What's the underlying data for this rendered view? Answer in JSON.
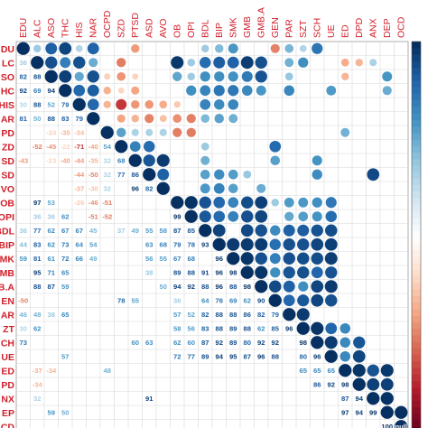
{
  "chart_data": {
    "type": "heatmap",
    "title": "",
    "variables": [
      "EDU",
      "ALC",
      "ASO",
      "THC",
      "HIS",
      "NAR",
      "OCPD",
      "SZD",
      "PTSD",
      "ASD",
      "AVO",
      "OB",
      "OPI",
      "BDL",
      "BIP",
      "SMK",
      "GMB",
      "GMB.A",
      "GEN",
      "PAR",
      "SZT",
      "SCH",
      "UE",
      "ED",
      "DPD",
      "ANX",
      "DEP",
      "OCD"
    ],
    "row_labels_visible": [
      "DU",
      "LC",
      "SO",
      "HC",
      "HIS",
      "AR",
      "PD",
      "ZD",
      "SD",
      "SD",
      "VO",
      "OB",
      "OPI",
      "BDL",
      "BIP",
      "SMK",
      "MB",
      "B.A",
      "EN",
      "AR",
      "ZT",
      "CH",
      "UE",
      "ED",
      "PD",
      "NX",
      "EP",
      "CD"
    ],
    "lower_triangle_values": [
      [],
      [
        36
      ],
      [
        82,
        88
      ],
      [
        92,
        69,
        94
      ],
      [
        30,
        88,
        52,
        79
      ],
      [
        81,
        50,
        88,
        83,
        79
      ],
      [
        null,
        null,
        -24,
        -35,
        -34,
        null
      ],
      [
        null,
        -52,
        -45,
        -22,
        -71,
        -40,
        54
      ],
      [
        -43,
        null,
        -23,
        -40,
        -44,
        -35,
        32,
        68
      ],
      [
        null,
        null,
        null,
        null,
        -44,
        -50,
        32,
        77,
        86
      ],
      [
        null,
        null,
        null,
        null,
        -37,
        -30,
        32,
        null,
        96,
        82
      ],
      [
        null,
        97,
        53,
        null,
        -26,
        -46,
        -51,
        null,
        null,
        null,
        null
      ],
      [
        null,
        36,
        36,
        62,
        null,
        -51,
        -52,
        null,
        null,
        null,
        null,
        99
      ],
      [
        36,
        77,
        62,
        67,
        67,
        45,
        null,
        37,
        49,
        55,
        58,
        87,
        85
      ],
      [
        44,
        83,
        62,
        73,
        64,
        54,
        null,
        null,
        null,
        63,
        68,
        79,
        78,
        93
      ],
      [
        59,
        81,
        61,
        72,
        66,
        49,
        null,
        null,
        null,
        56,
        55,
        67,
        68,
        null,
        96
      ],
      [
        null,
        95,
        71,
        65,
        null,
        null,
        null,
        null,
        null,
        38,
        null,
        89,
        88,
        91,
        96,
        98
      ],
      [
        null,
        88,
        87,
        59,
        null,
        null,
        null,
        null,
        null,
        null,
        50,
        94,
        92,
        88,
        96,
        88,
        98
      ],
      [
        -50,
        null,
        null,
        null,
        null,
        null,
        null,
        78,
        55,
        null,
        null,
        36,
        null,
        64,
        76,
        69,
        62,
        90
      ],
      [
        46,
        48,
        38,
        65,
        null,
        null,
        null,
        null,
        null,
        null,
        null,
        57,
        52,
        82,
        88,
        88,
        86,
        82,
        79
      ],
      [
        30,
        62,
        null,
        null,
        null,
        null,
        null,
        null,
        null,
        null,
        null,
        58,
        56,
        83,
        88,
        89,
        88,
        62,
        85,
        96
      ],
      [
        73,
        null,
        null,
        null,
        null,
        null,
        null,
        null,
        60,
        63,
        null,
        62,
        60,
        87,
        92,
        89,
        80,
        92,
        92,
        null,
        98
      ],
      [
        null,
        null,
        null,
        57,
        null,
        null,
        null,
        null,
        null,
        null,
        null,
        72,
        77,
        89,
        94,
        95,
        87,
        96,
        88,
        null,
        80,
        96
      ],
      [
        null,
        -37,
        -34,
        null,
        null,
        null,
        48,
        null,
        null,
        null,
        null,
        null,
        null,
        null,
        null,
        null,
        null,
        null,
        null,
        null,
        65,
        65,
        65
      ],
      [
        null,
        -34,
        null,
        null,
        null,
        null,
        null,
        null,
        null,
        null,
        null,
        null,
        null,
        null,
        null,
        null,
        null,
        null,
        null,
        null,
        null,
        86,
        92,
        98
      ],
      [
        null,
        32,
        null,
        null,
        null,
        null,
        null,
        null,
        null,
        91,
        null,
        null,
        null,
        null,
        null,
        null,
        null,
        null,
        null,
        null,
        null,
        null,
        null,
        87,
        94
      ],
      [
        null,
        null,
        59,
        50,
        null,
        null,
        null,
        null,
        null,
        null,
        null,
        null,
        null,
        null,
        null,
        null,
        null,
        null,
        null,
        null,
        null,
        null,
        null,
        97,
        94,
        99
      ],
      [
        null,
        null,
        null,
        null,
        null,
        null,
        null,
        null,
        null,
        null,
        null,
        null,
        null,
        null,
        null,
        null,
        null,
        null,
        null,
        null,
        null,
        null,
        null,
        null,
        null,
        null,
        100
      ]
    ],
    "color_scale": {
      "min": -100,
      "max": 100,
      "negative": "#b2182b",
      "neutral": "#ffffff",
      "positive": "#053061"
    },
    "legend": "right"
  }
}
